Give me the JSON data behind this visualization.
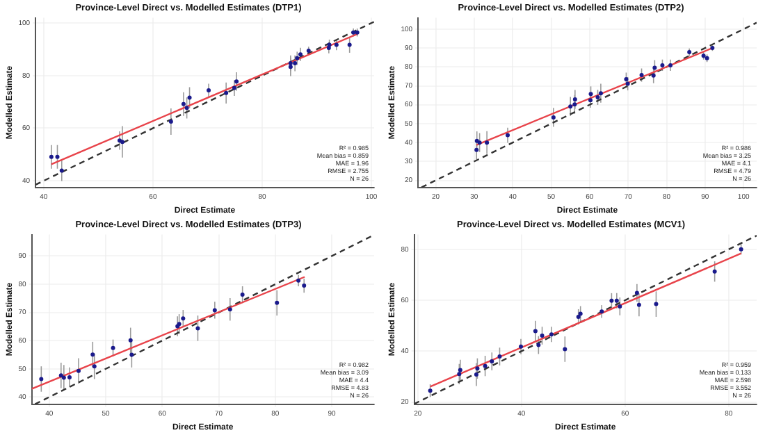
{
  "chart_data": [
    {
      "type": "scatter",
      "title": "Province-Level Direct vs. Modelled Estimates (DTP1)",
      "xlabel": "Direct Estimate",
      "ylabel": "Modelled Estimate",
      "xlim": [
        38.5,
        100.5
      ],
      "ylim": [
        37.5,
        102
      ],
      "xticks": [
        40,
        60,
        80,
        100
      ],
      "yticks": [
        40,
        60,
        80,
        100
      ],
      "grid": true,
      "annotations": [
        "R² = 0.985",
        "Mean bias = 0.859",
        "MAE = 1.96",
        "RMSE = 2.755",
        "N = 26"
      ],
      "series": [
        {
          "type": "scatter",
          "marker": "circle",
          "color": "#1a1a8c",
          "x": [
            41.4,
            42.5,
            43.3,
            53.9,
            54.4,
            63.3,
            65.6,
            66.2,
            66.7,
            70.2,
            73.4,
            74.9,
            75.3,
            85.2,
            85.2,
            86.0,
            86.4,
            87.0,
            88.5,
            92.2,
            92.3,
            93.6,
            96.0,
            96.7,
            97.4
          ],
          "values": [
            49.1,
            49.1,
            43.9,
            55.3,
            54.8,
            62.5,
            69.2,
            67.7,
            71.6,
            74.4,
            73.4,
            75.3,
            77.8,
            83.3,
            84.7,
            84.7,
            86.6,
            88.1,
            89.5,
            90.5,
            91.7,
            91.7,
            91.7,
            96.4,
            96.4
          ],
          "errors": [
            4.5,
            4.5,
            4,
            3.5,
            6,
            5,
            4.5,
            4,
            4,
            2.5,
            4,
            3,
            3.5,
            3.5,
            3,
            3,
            2.5,
            2.5,
            1.5,
            2,
            2,
            2,
            3,
            1.5,
            1.5
          ]
        },
        {
          "type": "line",
          "color": "#e8434a",
          "x": [
            41.4,
            97.5
          ],
          "values": [
            46.3,
            95.9
          ]
        },
        {
          "type": "line",
          "color": "#333333",
          "line_style": "dashed",
          "x": [
            38.5,
            100.5
          ],
          "values": [
            38.5,
            100.5
          ]
        }
      ]
    },
    {
      "type": "scatter",
      "title": "Province-Level Direct vs. Modelled Estimates (DTP2)",
      "xlabel": "Direct Estimate",
      "ylabel": "Modelled Estimate",
      "xlim": [
        15.4,
        103.4
      ],
      "ylim": [
        16.3,
        106
      ],
      "xticks": [
        20,
        30,
        40,
        50,
        60,
        70,
        80,
        90,
        100
      ],
      "yticks": [
        20,
        30,
        40,
        50,
        60,
        70,
        80,
        90,
        100
      ],
      "grid": true,
      "annotations": [
        "R² = 0.986",
        "Mean bias = 3.25",
        "MAE = 4.1",
        "RMSE = 4.79",
        "N = 26"
      ],
      "series": [
        {
          "type": "scatter",
          "marker": "circle",
          "color": "#1a1a8c",
          "x": [
            30.6,
            30.7,
            31.4,
            33.3,
            38.7,
            50.6,
            55.0,
            56.1,
            56.2,
            60.2,
            60.3,
            62.1,
            62.9,
            69.5,
            69.9,
            73.5,
            76.6,
            76.9,
            78.9,
            81.0,
            85.9,
            89.6,
            90.5,
            91.9
          ],
          "values": [
            36.1,
            40.9,
            40.0,
            40.0,
            43.9,
            53.3,
            59.1,
            60.2,
            62.8,
            62.4,
            65.7,
            63.9,
            66.1,
            73.5,
            71.1,
            75.7,
            75.4,
            79.6,
            80.9,
            80.9,
            87.8,
            85.9,
            84.6,
            90.0
          ],
          "errors": [
            5,
            5,
            5,
            6,
            4,
            5,
            5,
            5,
            5,
            4,
            4,
            4,
            5,
            3.5,
            3.5,
            3.5,
            4,
            4,
            3,
            3,
            2,
            2,
            2,
            1.5
          ]
        },
        {
          "type": "line",
          "color": "#e8434a",
          "x": [
            30.6,
            91.9
          ],
          "values": [
            38.7,
            90.0
          ]
        },
        {
          "type": "line",
          "color": "#333333",
          "line_style": "dashed",
          "x": [
            16.3,
            103.4
          ],
          "values": [
            16.3,
            103.4
          ]
        }
      ]
    },
    {
      "type": "scatter",
      "title": "Province-Level Direct vs. Modelled Estimates (DTP3)",
      "xlabel": "Direct Estimate",
      "ylabel": "Modelled Estimate",
      "xlim": [
        36.9,
        97.5
      ],
      "ylim": [
        37.5,
        97.6
      ],
      "xticks": [
        40,
        50,
        60,
        70,
        80,
        90
      ],
      "yticks": [
        40,
        50,
        60,
        70,
        80,
        90
      ],
      "grid": true,
      "annotations": [
        "R² = 0.982",
        "Mean bias = 3.09",
        "MAE = 4.4",
        "RMSE = 4.83",
        "N = 26"
      ],
      "series": [
        {
          "type": "scatter",
          "marker": "circle",
          "color": "#1a1a8c",
          "x": [
            38.6,
            42.1,
            42.6,
            43.6,
            45.2,
            47.7,
            48.0,
            51.3,
            54.4,
            54.6,
            62.7,
            63.0,
            63.7,
            66.3,
            69.3,
            72.0,
            74.2,
            80.3,
            84.1,
            85.1
          ],
          "values": [
            46.4,
            47.7,
            46.9,
            47.0,
            49.3,
            55.1,
            50.9,
            57.4,
            60.1,
            55.0,
            65.1,
            65.9,
            67.9,
            64.4,
            70.8,
            71.1,
            76.3,
            73.4,
            81.3,
            79.5
          ],
          "errors": [
            4.5,
            4.5,
            4.5,
            3.5,
            4.5,
            4.5,
            4.5,
            3,
            4.5,
            4.5,
            3.5,
            3.5,
            3,
            4.5,
            3,
            4,
            3,
            4.5,
            2,
            2.5
          ]
        },
        {
          "type": "line",
          "color": "#e8434a",
          "x": [
            36.9,
            85.2
          ],
          "values": [
            42.9,
            82.6
          ]
        },
        {
          "type": "line",
          "color": "#333333",
          "line_style": "dashed",
          "x": [
            37.5,
            97.5
          ],
          "values": [
            37.5,
            97.5
          ]
        }
      ]
    },
    {
      "type": "scatter",
      "title": "Province-Level Direct vs. Modelled Estimates (MCV1)",
      "xlabel": "Direct Estimate",
      "ylabel": "Modelled Estimate",
      "xlim": [
        19.3,
        85.4
      ],
      "ylim": [
        19.2,
        85.8
      ],
      "xticks": [
        20,
        40,
        60,
        80
      ],
      "yticks": [
        20,
        40,
        60,
        80
      ],
      "grid": true,
      "annotations": [
        "R² = 0.959",
        "Mean bias = 0.133",
        "MAE = 2.598",
        "RMSE = 3.552",
        "N = 26"
      ],
      "series": [
        {
          "type": "scatter",
          "marker": "circle",
          "color": "#1a1a8c",
          "x": [
            22.4,
            28.0,
            28.2,
            31.3,
            31.5,
            33.0,
            34.3,
            35.8,
            39.9,
            42.7,
            43.3,
            44.0,
            45.8,
            48.4,
            51.0,
            51.4,
            55.5,
            57.4,
            58.4,
            59.0,
            62.3,
            62.7,
            66.0,
            77.3,
            82.4
          ],
          "values": [
            24.5,
            31.0,
            32.6,
            30.8,
            33.2,
            34.2,
            36.0,
            37.9,
            41.8,
            47.9,
            42.4,
            46.1,
            46.6,
            40.8,
            53.5,
            54.7,
            55.6,
            59.8,
            59.8,
            57.6,
            62.9,
            58.2,
            58.5,
            71.3,
            80.0
          ],
          "errors": [
            2.5,
            4,
            4,
            4.5,
            4,
            4,
            3.5,
            3.5,
            3,
            4,
            3.5,
            3.5,
            3,
            5,
            3,
            3,
            2.5,
            3,
            3,
            3.5,
            3.5,
            4.5,
            5,
            4,
            2
          ]
        },
        {
          "type": "line",
          "color": "#e8434a",
          "x": [
            22.4,
            82.4
          ],
          "values": [
            26.1,
            78.4
          ]
        },
        {
          "type": "line",
          "color": "#333333",
          "line_style": "dashed",
          "x": [
            19.3,
            85.4
          ],
          "values": [
            19.3,
            85.4
          ]
        }
      ]
    }
  ]
}
